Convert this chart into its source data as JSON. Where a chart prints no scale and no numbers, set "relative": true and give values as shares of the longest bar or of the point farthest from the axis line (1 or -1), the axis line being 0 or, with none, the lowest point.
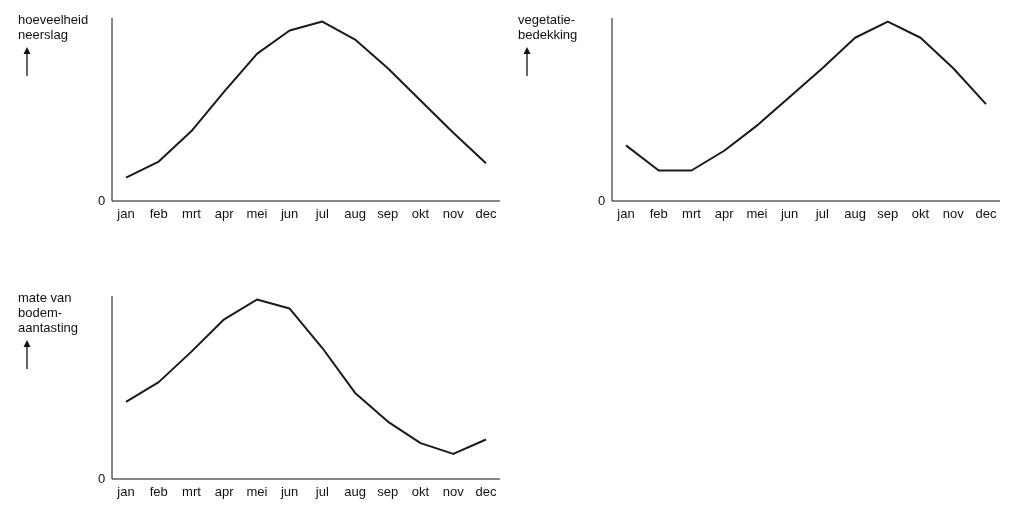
{
  "chart_data": [
    {
      "type": "line",
      "relative": true,
      "ylabel": "hoeveelheid neerslag",
      "annotations": [
        "0"
      ],
      "categories": [
        "jan",
        "feb",
        "mrt",
        "apr",
        "mei",
        "jun",
        "jul",
        "aug",
        "sep",
        "okt",
        "nov",
        "dec"
      ],
      "marker": "none",
      "grid": false,
      "legend": false,
      "series": [
        {
          "color": "#1a1a1a",
          "values": [
            0.13,
            0.22,
            0.39,
            0.61,
            0.82,
            0.95,
            1.0,
            0.9,
            0.74,
            0.56,
            0.38,
            0.21
          ]
        }
      ]
    },
    {
      "type": "line",
      "relative": true,
      "ylabel": "vegetatie-bedekking",
      "annotations": [
        "0"
      ],
      "categories": [
        "jan",
        "feb",
        "mrt",
        "apr",
        "mei",
        "jun",
        "jul",
        "aug",
        "sep",
        "okt",
        "nov",
        "dec"
      ],
      "marker": "none",
      "grid": false,
      "legend": false,
      "series": [
        {
          "color": "#1a1a1a",
          "values": [
            0.31,
            0.17,
            0.17,
            0.28,
            0.42,
            0.58,
            0.74,
            0.91,
            1.0,
            0.91,
            0.74,
            0.54
          ]
        }
      ]
    },
    {
      "type": "line",
      "relative": true,
      "ylabel": "mate van bodem-aantasting",
      "annotations": [
        "0"
      ],
      "categories": [
        "jan",
        "feb",
        "mrt",
        "apr",
        "mei",
        "jun",
        "jul",
        "aug",
        "sep",
        "okt",
        "nov",
        "dec"
      ],
      "marker": "none",
      "grid": false,
      "legend": false,
      "series": [
        {
          "color": "#1a1a1a",
          "values": [
            0.43,
            0.54,
            0.71,
            0.89,
            1.0,
            0.95,
            0.73,
            0.48,
            0.32,
            0.2,
            0.14,
            0.22
          ]
        }
      ]
    }
  ]
}
